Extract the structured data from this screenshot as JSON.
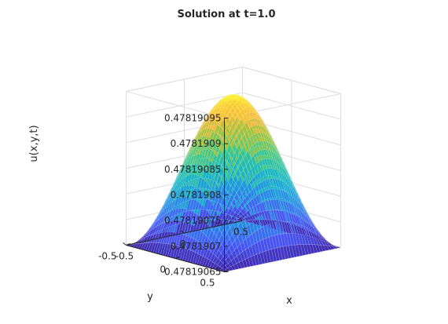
{
  "chart_data": {
    "type": "surface",
    "title": "Solution at t=1.0",
    "xlabel": "x",
    "ylabel": "y",
    "zlabel": "u(x,y,t)",
    "xlim": [
      -0.5,
      0.5
    ],
    "ylim": [
      -0.5,
      0.5
    ],
    "zlim": [
      0.47819065,
      0.47819095
    ],
    "xticks": [
      "-0.5",
      "0",
      "0.5"
    ],
    "yticks": [
      "-0.5",
      "0",
      "0.5"
    ],
    "zticks": [
      "0.47819065",
      "0.4781907",
      "0.47819075",
      "0.4781908",
      "0.47819085",
      "0.4781909",
      "0.47819095"
    ],
    "surface": {
      "formula": "u = 0.47819065 + 0.000000296 * cos(pi*x) * cos(pi*y)",
      "z_min": 0.47819065,
      "z_max": 0.478190946,
      "grid": 41
    },
    "colormap": "parula",
    "grid": true,
    "colors": {
      "low": "#3e26a8",
      "mid": "#13beb7",
      "high": "#f9fb15"
    }
  }
}
